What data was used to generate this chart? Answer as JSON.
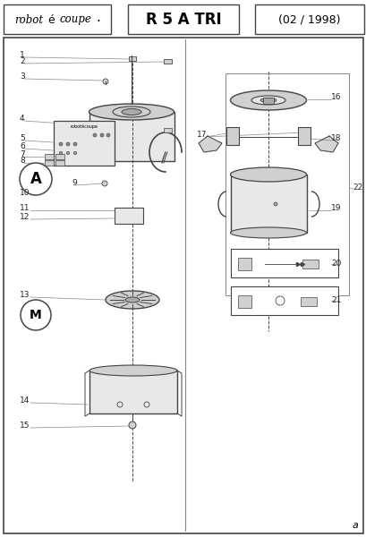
{
  "title_center": "R 5 A TRI",
  "title_right": "(02 / 1998)",
  "bg_color": "#ffffff",
  "footer_letter": "a",
  "line_color": "#444444",
  "label_color": "#222222",
  "fill_light": "#e8e8e8",
  "fill_mid": "#d0d0d0",
  "fill_dark": "#aaaaaa"
}
